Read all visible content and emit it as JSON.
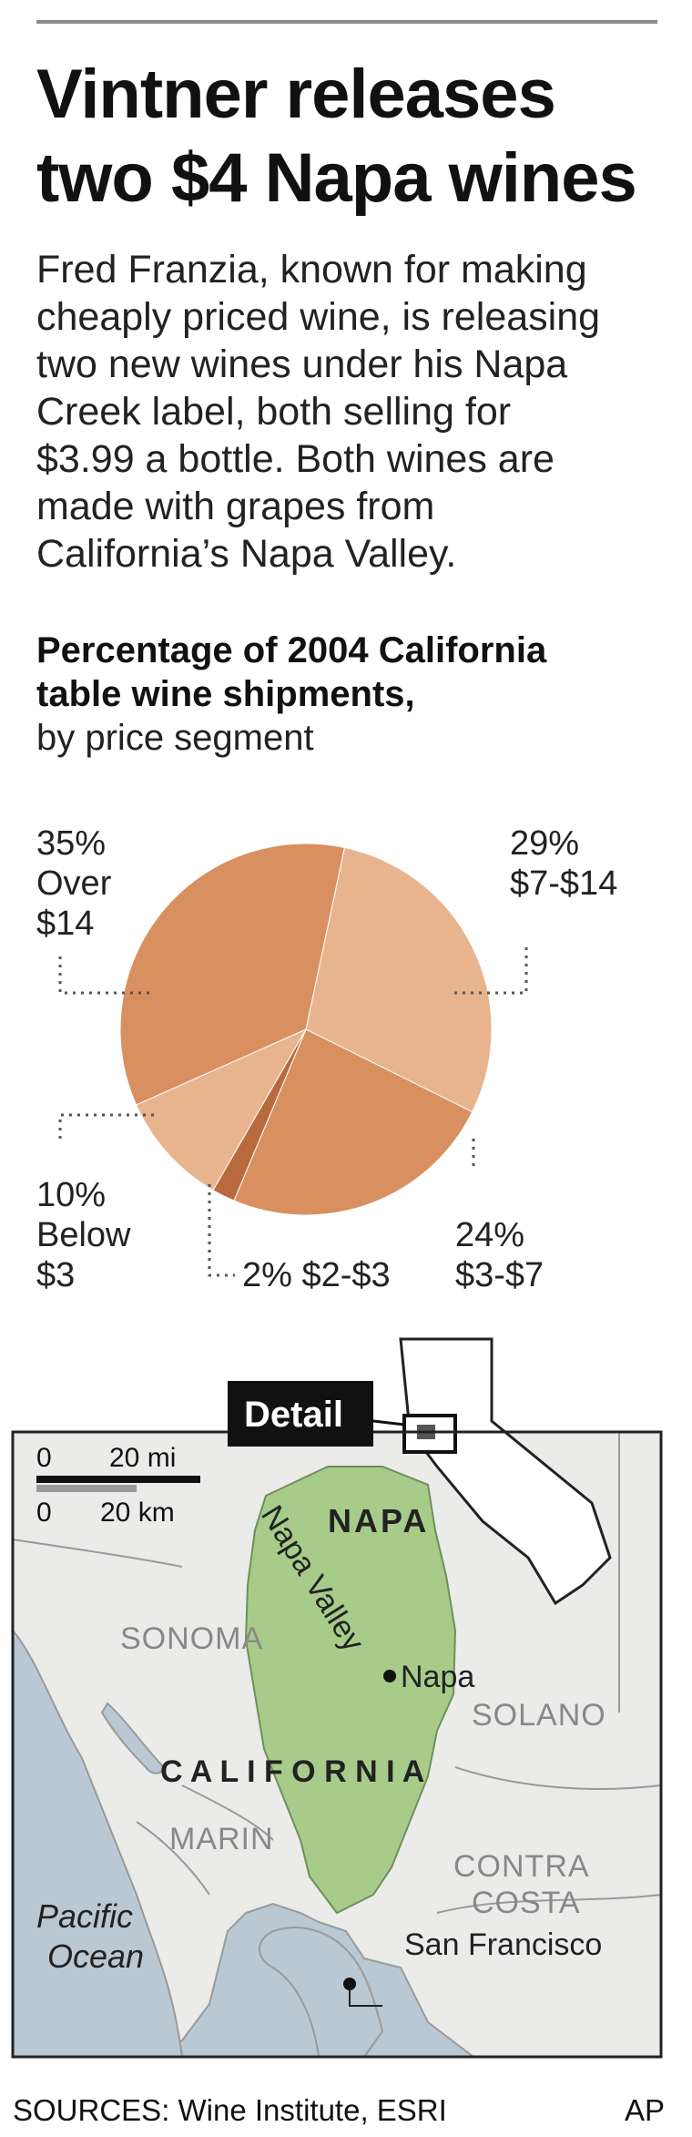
{
  "headline": {
    "line1": "Vintner releases",
    "line2": "two $4 Napa wines"
  },
  "intro": {
    "lines": [
      "Fred Franzia, known for making",
      "cheaply priced wine, is releasing",
      "two new wines under his Napa",
      "Creek label, both selling for",
      "$3.99 a bottle. Both wines are",
      "made with grapes from",
      "California’s Napa Valley."
    ]
  },
  "chart_data": {
    "type": "pie",
    "title_line1": "Percentage of 2004 California",
    "title_line2": "table wine shipments,",
    "subtitle": "by price segment",
    "unit": "%",
    "slices": [
      {
        "label": "$7-$14",
        "percent_label": "29%",
        "value": 29,
        "color": "#e8b48e"
      },
      {
        "label": "$3-$7",
        "percent_label": "24%",
        "value": 24,
        "color": "#d89060"
      },
      {
        "label": "$2-$3",
        "percent_label": "2%",
        "value": 2,
        "color": "#b86a3e"
      },
      {
        "label": "Below $3",
        "percent_label": "10%",
        "value": 10,
        "color": "#e8b48e"
      },
      {
        "label": "Over $14",
        "percent_label": "35%",
        "value": 35,
        "color": "#d89060"
      }
    ],
    "callouts": {
      "over14": {
        "pct": "35%",
        "line1": "Over",
        "line2": "$14"
      },
      "s7_14": {
        "pct": "29%",
        "line1": "$7-$14"
      },
      "s3_7": {
        "pct": "24%",
        "line1": "$3-$7"
      },
      "below3": {
        "pct": "10%",
        "line1": "Below",
        "line2": "$3"
      },
      "s2_3": {
        "text": "2% $2-$3"
      }
    }
  },
  "map": {
    "detail_label": "Detail",
    "scale": {
      "mi_zero": "0",
      "mi_label": "20 mi",
      "km_zero": "0",
      "km_label": "20 km"
    },
    "labels": {
      "napa_county": "NAPA",
      "napa_valley": "Napa Valley",
      "napa_city": "Napa",
      "sonoma": "SONOMA",
      "solano": "SOLANO",
      "california": "C A L I F O R N I A",
      "marin": "MARIN",
      "contra": "CONTRA",
      "costa": "COSTA",
      "pacific": "Pacific",
      "ocean": "Ocean",
      "san_francisco": "San Francisco"
    },
    "colors": {
      "napa_fill": "#a7cc8a",
      "land": "#ebebea",
      "water": "#b9c8d3"
    }
  },
  "footer": {
    "sources": "SOURCES: Wine Institute, ESRI",
    "credit": "AP"
  }
}
